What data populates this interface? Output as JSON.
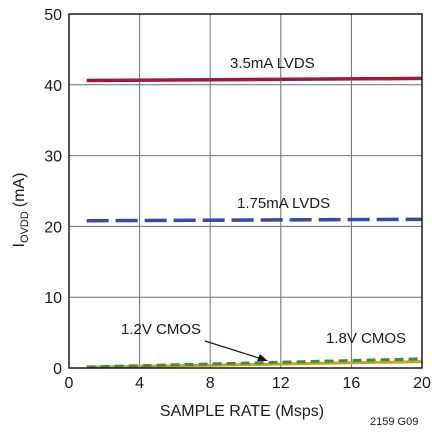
{
  "chart_data": {
    "type": "line",
    "xlabel": "SAMPLE RATE (Msps)",
    "ylabel_main": "I",
    "ylabel_sub": "OVDD",
    "ylabel_unit": "(mA)",
    "xlim": [
      0,
      20
    ],
    "ylim": [
      0,
      50
    ],
    "xticks": [
      0,
      4,
      8,
      12,
      16,
      20
    ],
    "yticks": [
      0,
      10,
      20,
      30,
      40,
      50
    ],
    "grid": true,
    "series": [
      {
        "name": "3.5mA LVDS",
        "color": "#9c1a37",
        "style": "solid",
        "x": [
          1,
          20
        ],
        "y": [
          40.6,
          40.9
        ]
      },
      {
        "name": "1.75mA LVDS",
        "color": "#2f4f9e",
        "style": "dashed",
        "x": [
          1,
          20
        ],
        "y": [
          20.8,
          21.0
        ]
      },
      {
        "name": "1.2V CMOS",
        "color": "#c9a227",
        "style": "solid",
        "x": [
          1,
          20
        ],
        "y": [
          0.1,
          0.9
        ]
      },
      {
        "name": "1.8V CMOS",
        "color": "#3f8f3f",
        "style": "dashed",
        "x": [
          1,
          20
        ],
        "y": [
          0.15,
          1.3
        ]
      }
    ],
    "annotations": [
      {
        "text": "3.5mA LVDS"
      },
      {
        "text": "1.75mA LVDS"
      },
      {
        "text": "1.2V CMOS"
      },
      {
        "text": "1.8V CMOS"
      }
    ]
  },
  "figure_code": "2159 G09"
}
